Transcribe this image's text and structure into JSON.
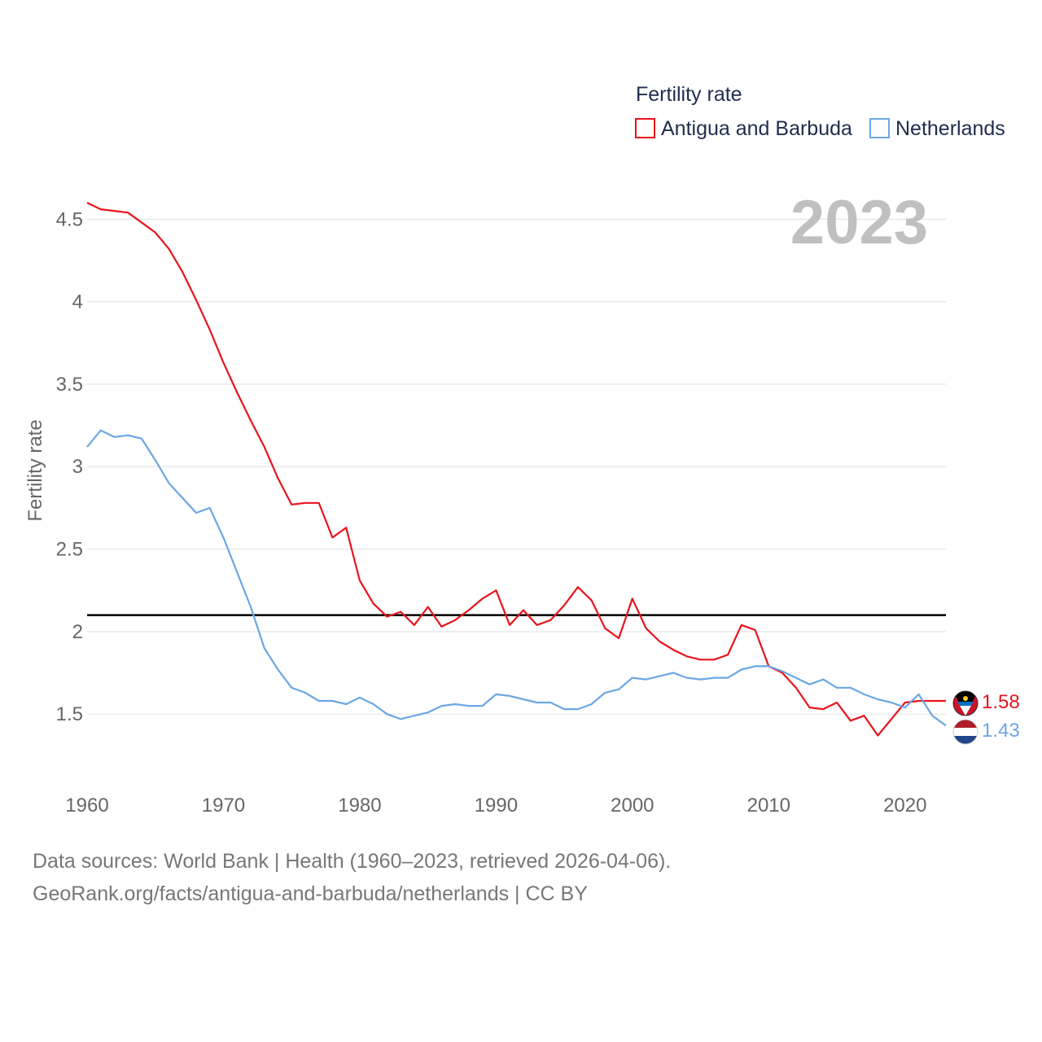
{
  "chart_data": {
    "type": "line",
    "title": "",
    "year_display": "2023",
    "xlabel": "",
    "ylabel": "Fertility rate",
    "xlim": [
      1960,
      2023
    ],
    "ylim": [
      1.2,
      4.6
    ],
    "x_ticks": [
      1960,
      1970,
      1980,
      1990,
      2000,
      2010,
      2020
    ],
    "y_ticks": [
      1.5,
      2,
      2.5,
      3,
      3.5,
      4,
      4.5
    ],
    "y_tick_labels": [
      "1.5",
      "2",
      "2.5",
      "3",
      "3.5",
      "4",
      "4.5"
    ],
    "x_tick_labels": [
      "1960",
      "1970",
      "1980",
      "1990",
      "2000",
      "2010",
      "2020"
    ],
    "reference_line": {
      "y": 2.1,
      "color": "#000000"
    },
    "legend": {
      "title": "Fertility rate",
      "position": "top-right",
      "entries": [
        "Antigua and Barbuda",
        "Netherlands"
      ]
    },
    "x": [
      1960,
      1961,
      1962,
      1963,
      1964,
      1965,
      1966,
      1967,
      1968,
      1969,
      1970,
      1971,
      1972,
      1973,
      1974,
      1975,
      1976,
      1977,
      1978,
      1979,
      1980,
      1981,
      1982,
      1983,
      1984,
      1985,
      1986,
      1987,
      1988,
      1989,
      1990,
      1991,
      1992,
      1993,
      1994,
      1995,
      1996,
      1997,
      1998,
      1999,
      2000,
      2001,
      2002,
      2003,
      2004,
      2005,
      2006,
      2007,
      2008,
      2009,
      2010,
      2011,
      2012,
      2013,
      2014,
      2015,
      2016,
      2017,
      2018,
      2019,
      2020,
      2021,
      2022,
      2023
    ],
    "series": [
      {
        "name": "Antigua and Barbuda",
        "color": "#e8141c",
        "end_label": "1.58",
        "values": [
          4.6,
          4.56,
          4.55,
          4.54,
          4.48,
          4.42,
          4.32,
          4.18,
          4.01,
          3.83,
          3.63,
          3.45,
          3.28,
          3.12,
          2.93,
          2.77,
          2.78,
          2.78,
          2.57,
          2.63,
          2.31,
          2.17,
          2.09,
          2.12,
          2.04,
          2.15,
          2.03,
          2.07,
          2.13,
          2.2,
          2.25,
          2.04,
          2.13,
          2.04,
          2.07,
          2.16,
          2.27,
          2.19,
          2.02,
          1.96,
          2.2,
          2.02,
          1.94,
          1.89,
          1.85,
          1.83,
          1.83,
          1.86,
          2.04,
          2.01,
          1.79,
          1.75,
          1.66,
          1.54,
          1.53,
          1.57,
          1.46,
          1.49,
          1.37,
          1.47,
          1.57,
          1.58,
          1.58,
          1.58
        ]
      },
      {
        "name": "Netherlands",
        "color": "#6ba7e3",
        "end_label": "1.43",
        "values": [
          3.12,
          3.22,
          3.18,
          3.19,
          3.17,
          3.04,
          2.9,
          2.81,
          2.72,
          2.75,
          2.57,
          2.36,
          2.15,
          1.9,
          1.77,
          1.66,
          1.63,
          1.58,
          1.58,
          1.56,
          1.6,
          1.56,
          1.5,
          1.47,
          1.49,
          1.51,
          1.55,
          1.56,
          1.55,
          1.55,
          1.62,
          1.61,
          1.59,
          1.57,
          1.57,
          1.53,
          1.53,
          1.56,
          1.63,
          1.65,
          1.72,
          1.71,
          1.73,
          1.75,
          1.72,
          1.71,
          1.72,
          1.72,
          1.77,
          1.79,
          1.79,
          1.76,
          1.72,
          1.68,
          1.71,
          1.66,
          1.66,
          1.62,
          1.59,
          1.57,
          1.54,
          1.62,
          1.49,
          1.43
        ]
      }
    ]
  },
  "footer": {
    "line1": "Data sources: World Bank | Health (1960–2023, retrieved 2026-04-06).",
    "line2": "GeoRank.org/facts/antigua-and-barbuda/netherlands | CC BY"
  },
  "icons": [
    "antigua-flag-icon",
    "netherlands-flag-icon"
  ]
}
